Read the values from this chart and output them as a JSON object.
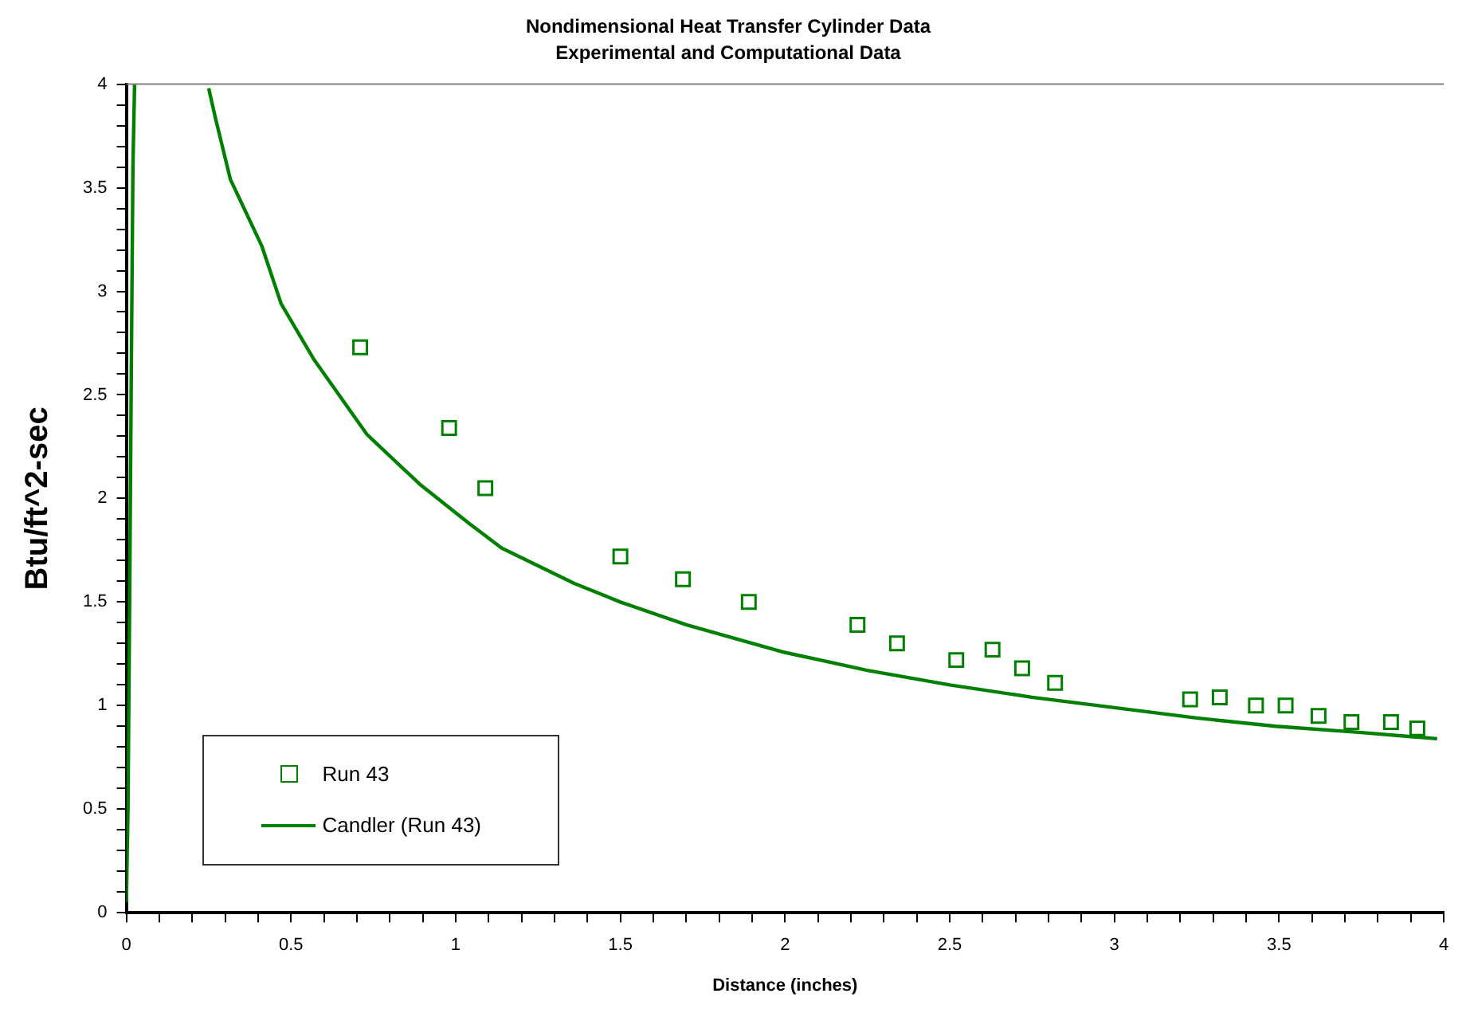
{
  "chart_data": {
    "type": "scatter",
    "title": "Nondimensional Heat Transfer Cylinder Data",
    "subtitle": "Experimental and Computational Data",
    "xlabel": "Distance (inches)",
    "ylabel": "Btu/ft^2-sec",
    "xlim": [
      0,
      4
    ],
    "ylim": [
      0,
      4
    ],
    "xticks": [
      0,
      {
        "value": 0.1,
        "label": null
      },
      {
        "value": 0.2,
        "label": null
      },
      {
        "value": 0.3,
        "label": null
      },
      {
        "value": 0.4,
        "label": null
      },
      0.5,
      {
        "value": 0.6,
        "label": null
      },
      {
        "value": 0.7,
        "label": null
      },
      {
        "value": 0.8,
        "label": null
      },
      {
        "value": 0.9,
        "label": null
      },
      1,
      {
        "value": 1.1,
        "label": null
      },
      {
        "value": 1.2,
        "label": null
      },
      {
        "value": 1.3,
        "label": null
      },
      {
        "value": 1.4,
        "label": null
      },
      1.5,
      {
        "value": 1.6,
        "label": null
      },
      {
        "value": 1.7,
        "label": null
      },
      {
        "value": 1.8,
        "label": null
      },
      {
        "value": 1.9,
        "label": null
      },
      2,
      {
        "value": 2.1,
        "label": null
      },
      {
        "value": 2.2,
        "label": null
      },
      {
        "value": 2.3,
        "label": null
      },
      {
        "value": 2.4,
        "label": null
      },
      2.5,
      {
        "value": 2.6,
        "label": null
      },
      {
        "value": 2.7,
        "label": null
      },
      {
        "value": 2.8,
        "label": null
      },
      {
        "value": 2.9,
        "label": null
      },
      3,
      {
        "value": 3.1,
        "label": null
      },
      {
        "value": 3.2,
        "label": null
      },
      {
        "value": 3.3,
        "label": null
      },
      {
        "value": 3.4,
        "label": null
      },
      3.5,
      {
        "value": 3.6,
        "label": null
      },
      {
        "value": 3.7,
        "label": null
      },
      {
        "value": 3.8,
        "label": null
      },
      {
        "value": 3.9,
        "label": null
      },
      4
    ],
    "yticks": [
      0,
      {
        "value": 0.1,
        "label": null
      },
      {
        "value": 0.2,
        "label": null
      },
      {
        "value": 0.3,
        "label": null
      },
      {
        "value": 0.4,
        "label": null
      },
      0.5,
      {
        "value": 0.6,
        "label": null
      },
      {
        "value": 0.7,
        "label": null
      },
      {
        "value": 0.8,
        "label": null
      },
      {
        "value": 0.9,
        "label": null
      },
      1,
      {
        "value": 1.1,
        "label": null
      },
      {
        "value": 1.2,
        "label": null
      },
      {
        "value": 1.3,
        "label": null
      },
      {
        "value": 1.4,
        "label": null
      },
      1.5,
      {
        "value": 1.6,
        "label": null
      },
      {
        "value": 1.7,
        "label": null
      },
      {
        "value": 1.8,
        "label": null
      },
      {
        "value": 1.9,
        "label": null
      },
      2,
      {
        "value": 2.1,
        "label": null
      },
      {
        "value": 2.2,
        "label": null
      },
      {
        "value": 2.3,
        "label": null
      },
      {
        "value": 2.4,
        "label": null
      },
      2.5,
      {
        "value": 2.6,
        "label": null
      },
      {
        "value": 2.7,
        "label": null
      },
      {
        "value": 2.8,
        "label": null
      },
      {
        "value": 2.9,
        "label": null
      },
      3,
      {
        "value": 3.1,
        "label": null
      },
      {
        "value": 3.2,
        "label": null
      },
      {
        "value": 3.3,
        "label": null
      },
      {
        "value": 3.4,
        "label": null
      },
      3.5,
      {
        "value": 3.6,
        "label": null
      },
      {
        "value": 3.7,
        "label": null
      },
      {
        "value": 3.8,
        "label": null
      },
      {
        "value": 3.9,
        "label": null
      },
      4
    ],
    "grid": false,
    "legend": "bottom left",
    "series": [
      {
        "name": "Run 43",
        "type": "scatter",
        "marker": "square",
        "color": "#008000",
        "x": [
          0.71,
          0.98,
          1.09,
          1.5,
          1.69,
          1.89,
          2.22,
          2.34,
          2.52,
          2.63,
          2.72,
          2.82,
          3.23,
          3.32,
          3.43,
          3.52,
          3.62,
          3.72,
          3.84,
          3.92
        ],
        "values": [
          2.73,
          2.34,
          2.05,
          1.72,
          1.61,
          1.5,
          1.39,
          1.3,
          1.22,
          1.27,
          1.18,
          1.11,
          1.03,
          1.04,
          1.0,
          1.0,
          0.95,
          0.92,
          0.92,
          0.89
        ]
      },
      {
        "name": "Candler (Run 43)",
        "type": "line",
        "marker": "none",
        "line_style": "solid",
        "color": "#008000",
        "x": [
          0.0,
          0.005,
          0.01,
          0.015,
          0.02,
          0.025,
          0.1,
          0.25,
          0.27,
          0.316,
          0.411,
          0.47,
          0.57,
          0.73,
          0.89,
          1.04,
          1.14,
          1.36,
          1.5,
          1.7,
          1.99,
          2.25,
          2.5,
          2.75,
          3.0,
          3.25,
          3.49,
          3.75,
          3.98
        ],
        "values": [
          0.05,
          0.5,
          1.5,
          2.6,
          3.6,
          4.0,
          null,
          3.98,
          3.84,
          3.54,
          3.22,
          2.94,
          2.67,
          2.31,
          2.07,
          1.88,
          1.76,
          1.59,
          1.5,
          1.39,
          1.26,
          1.17,
          1.1,
          1.04,
          0.99,
          0.94,
          0.9,
          0.87,
          0.84
        ]
      }
    ]
  }
}
